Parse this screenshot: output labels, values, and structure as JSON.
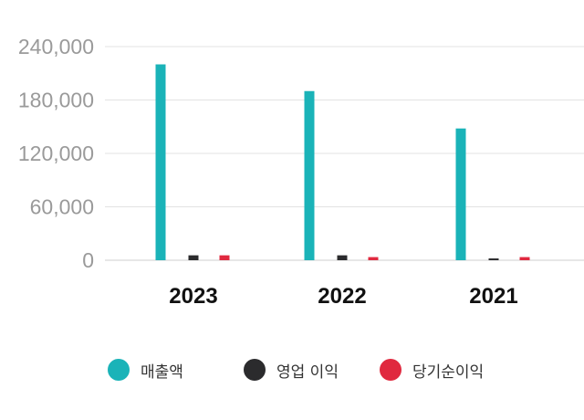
{
  "chart_data": {
    "type": "bar",
    "categories": [
      "2023",
      "2022",
      "2021"
    ],
    "series": [
      {
        "name": "매출액",
        "values": [
          220000,
          190000,
          148000
        ],
        "color": "#1ab3b8"
      },
      {
        "name": "영업 이익",
        "values": [
          5500,
          5500,
          2000
        ],
        "color": "#2b2b2d"
      },
      {
        "name": "당기순이익",
        "values": [
          5500,
          3500,
          3500
        ],
        "color": "#e0293f"
      }
    ],
    "y_ticks": [
      "0",
      "60,000",
      "120,000",
      "180,000",
      "240,000"
    ],
    "ylim": [
      0,
      240000
    ],
    "grid": true,
    "legend_position": "bottom",
    "title": "",
    "xlabel": "",
    "ylabel": ""
  }
}
